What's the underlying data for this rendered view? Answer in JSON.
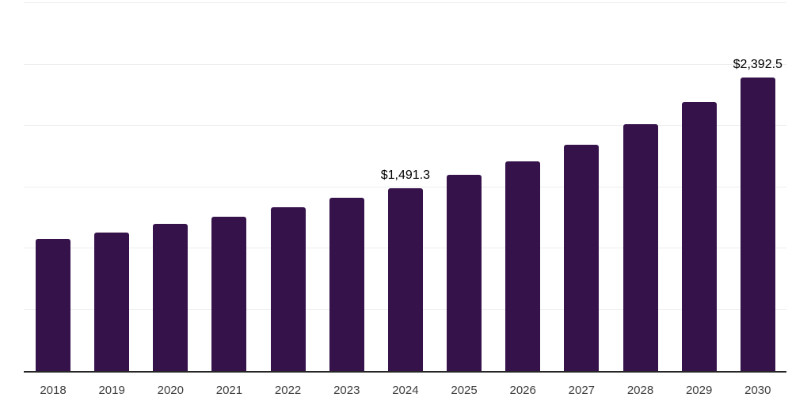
{
  "chart_data": {
    "type": "bar",
    "categories": [
      "2018",
      "2019",
      "2020",
      "2021",
      "2022",
      "2023",
      "2024",
      "2025",
      "2026",
      "2027",
      "2028",
      "2029",
      "2030"
    ],
    "values": [
      1078,
      1132,
      1200,
      1260,
      1335,
      1410,
      1491.3,
      1597,
      1710,
      1845,
      2010,
      2193,
      2392.5
    ],
    "data_labels": [
      "",
      "",
      "",
      "",
      "",
      "",
      "$1,491.3",
      "",
      "",
      "",
      "",
      "",
      "$2,392.5"
    ],
    "ylim": [
      0,
      3000
    ],
    "gridline_step": 500,
    "grid": "horizontal",
    "legend": "none",
    "y_axis_tick_labels": "none",
    "xlabel": "",
    "ylabel": "",
    "colors": {
      "bar": "#36124B",
      "gridline": "#ededed",
      "axis_line": "#262626",
      "tick_label": "#3d3d3d",
      "data_label": "#000000"
    }
  }
}
